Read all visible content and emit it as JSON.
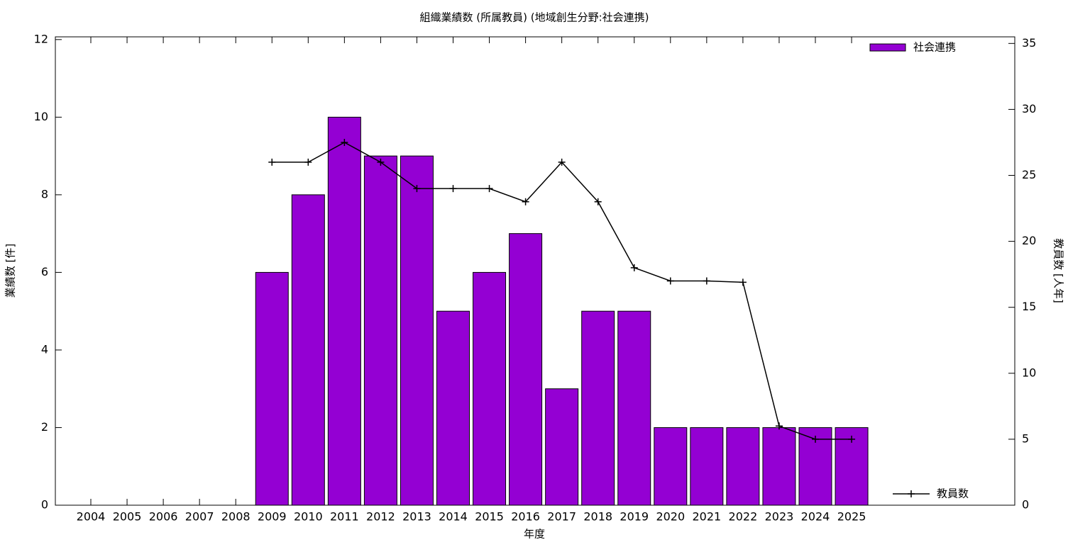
{
  "chart_data": {
    "type": "bar",
    "title": "組織業績数 (所属教員) (地域創生分野:社会連携)",
    "x_label": "年度",
    "y_label": "業績数 [件]",
    "y2_label": "教員数 [人年]",
    "categories": [
      "2004",
      "2005",
      "2006",
      "2007",
      "2008",
      "2009",
      "2010",
      "2011",
      "2012",
      "2013",
      "2014",
      "2015",
      "2016",
      "2017",
      "2018",
      "2019",
      "2020",
      "2021",
      "2022",
      "2023",
      "2024",
      "2025"
    ],
    "series": [
      {
        "name": "社会連携",
        "color": "#9400d3",
        "values": [
          null,
          null,
          null,
          null,
          null,
          6,
          8,
          10,
          9,
          9,
          5,
          6,
          7,
          3,
          5,
          5,
          2,
          2,
          2,
          2,
          2,
          2
        ]
      },
      {
        "name": "教員数",
        "type": "line",
        "color": "#000000",
        "axis": "y2",
        "values": [
          null,
          null,
          null,
          null,
          null,
          26,
          26,
          27.5,
          26,
          24,
          24,
          24,
          23,
          26,
          23,
          18,
          17,
          17,
          16.9,
          6,
          5,
          5
        ]
      }
    ],
    "ylim": [
      0,
      12.07
    ],
    "yticks": [
      0,
      2,
      4,
      6,
      8,
      10,
      12
    ],
    "y2lim": [
      0,
      35.5
    ],
    "y2ticks": [
      0,
      5,
      10,
      15,
      20,
      25,
      30,
      35
    ]
  }
}
